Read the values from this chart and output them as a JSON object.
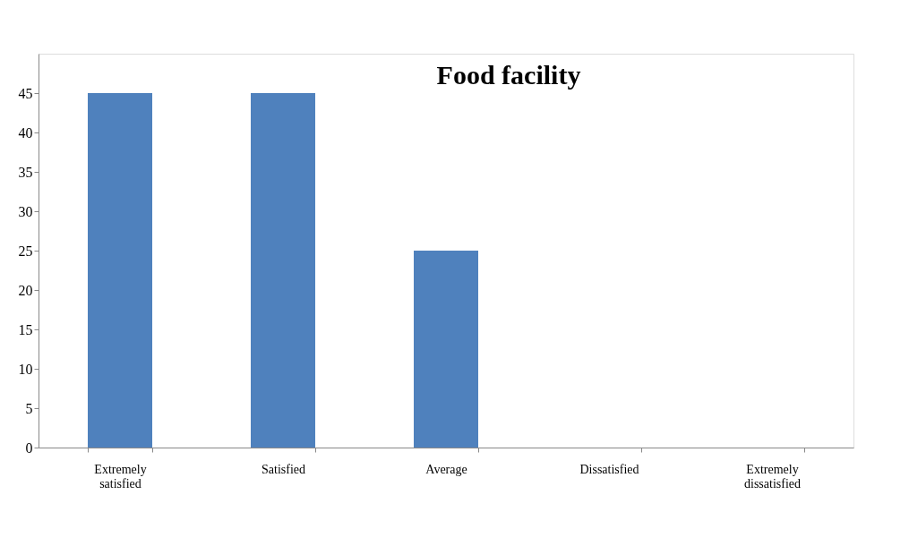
{
  "chart_data": {
    "type": "bar",
    "title": "Food facility",
    "categories": [
      "Extremely satisfied",
      "Satisfied",
      "Average",
      "Dissatisfied",
      "Extremely dissatisfied"
    ],
    "values": [
      45,
      45,
      25,
      0,
      0
    ],
    "color": "#4f81bd",
    "ylim": [
      0,
      50
    ],
    "yticks": [
      0,
      5,
      10,
      15,
      20,
      25,
      30,
      35,
      40,
      45
    ],
    "grid": false
  }
}
